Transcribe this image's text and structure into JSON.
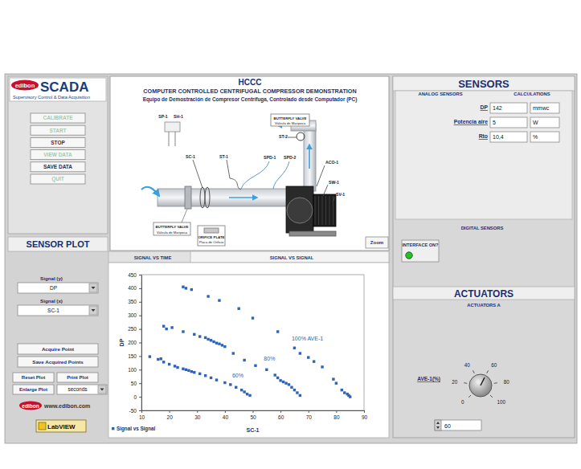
{
  "header": {
    "brand": "edibon",
    "product": "SCADA",
    "subtitle": "Supervisory Control & Data Acquisition"
  },
  "buttons": [
    {
      "label": "CALIBRATE",
      "enabled": false
    },
    {
      "label": "START",
      "enabled": false
    },
    {
      "label": "STOP",
      "enabled": true
    },
    {
      "label": "VIEW DATA",
      "enabled": false
    },
    {
      "label": "SAVE DATA",
      "enabled": true
    },
    {
      "label": "QUIT",
      "enabled": false
    }
  ],
  "diagram": {
    "code": "HCCC",
    "title": "COMPUTER CONTROLLED CENTRIFUGAL COMPRESSOR DEMONSTRATION",
    "subtitle": "Equipo de Demostración de Compresor Centrífuga, Controlado desde Computador (PC)",
    "tags": [
      "SP-1",
      "SH-1",
      "SC-1",
      "ST-1",
      "SPD-1",
      "SPD-2",
      "ST-2",
      "ACO-1",
      "SW-1",
      "SV-1"
    ],
    "valve_outlet": [
      "BUTTERFLY VALVE",
      "Válvula de Mariposa"
    ],
    "valve_inlet": [
      "BUTTERFLY VALVE",
      "Válvula de Mariposa"
    ],
    "orifice": [
      "ORIFICE PLATE",
      "Placa de Orificio"
    ],
    "zoom": "Zoom"
  },
  "sensors": {
    "title": "SENSORS",
    "tabs": [
      "ANALOG SENSORS",
      "CALCULATIONS"
    ],
    "readings": [
      {
        "label": "DP",
        "value": 142,
        "unit": "mmwc"
      },
      {
        "label": "Potencia aire",
        "value": 5,
        "unit": "W"
      },
      {
        "label": "Rto",
        "value": 10.4,
        "value_label": "10,4",
        "unit": "%"
      }
    ],
    "digital_title": "DIGITAL SENSORS",
    "interface": {
      "label": "INTERFACE ON?",
      "on": true
    }
  },
  "actuators": {
    "title": "ACTUATORS",
    "group": "ACTUATORS A",
    "knob": {
      "label": "AVE-1(%)",
      "range": [
        0,
        100
      ],
      "ticks": [
        0,
        20,
        40,
        60,
        80,
        100
      ],
      "value": 60
    }
  },
  "sensor_plot": {
    "title": "SENSOR PLOT",
    "tabs": [
      "SIGNAL VS TIME",
      "SIGNAL VS SIGNAL"
    ],
    "signal_y_label": "Signal (y)",
    "signal_y": "DP",
    "signal_x_label": "Signal (x)",
    "signal_x": "SC-1",
    "buttons": [
      "Acquire Point",
      "Save Acquired Points",
      "Reset Plot",
      "Print Plot",
      "Enlarge Plot"
    ],
    "time_unit": "seconds",
    "website": "www.edibon.com",
    "logo": "edibon",
    "labview": "LabVIEW"
  },
  "chart_data": {
    "type": "scatter",
    "x_label": "SC-1",
    "y_label": "DP",
    "xlim": [
      10,
      90
    ],
    "ylim": [
      -50,
      450
    ],
    "xticks": [
      10,
      20,
      30,
      40,
      50,
      60,
      70,
      80,
      90
    ],
    "yticks": [
      -50,
      0,
      50,
      100,
      150,
      200,
      250,
      300,
      350,
      400,
      450
    ],
    "grid": false,
    "legend": "bottom-left",
    "annotations": [
      {
        "text": "100% AVE-1",
        "x": 64,
        "y": 206
      },
      {
        "text": "80%",
        "x": 54,
        "y": 132
      },
      {
        "text": "60%",
        "x": 42.6,
        "y": 70
      }
    ],
    "series": [
      {
        "name": "Signal vs Signal",
        "color": "#2f63b8",
        "marker": "square",
        "x": [
          25,
          26,
          28,
          34,
          38,
          45,
          50,
          59,
          65,
          67,
          70,
          72,
          75,
          79,
          80,
          82,
          83,
          84,
          84.5,
          85,
          18,
          19,
          21,
          25,
          29,
          31,
          33,
          34,
          35,
          36,
          37,
          38,
          39,
          40,
          43,
          47,
          51,
          55,
          58,
          59,
          60,
          61,
          62,
          63,
          64,
          65,
          66,
          67,
          13,
          16,
          17,
          18,
          20,
          22,
          23,
          25,
          26,
          27,
          28,
          29,
          31,
          33,
          35,
          37,
          40,
          42,
          44,
          46,
          47,
          48,
          49
        ],
        "values": [
          405,
          400,
          395,
          370,
          355,
          325,
          290,
          240,
          180,
          160,
          145,
          130,
          110,
          65,
          50,
          25,
          15,
          10,
          5,
          0,
          260,
          250,
          255,
          240,
          230,
          222,
          218,
          212,
          208,
          203,
          198,
          195,
          190,
          185,
          160,
          135,
          115,
          100,
          80,
          70,
          60,
          55,
          50,
          45,
          35,
          25,
          15,
          5,
          148,
          138,
          140,
          128,
          120,
          113,
          108,
          103,
          100,
          97,
          93,
          90,
          85,
          78,
          70,
          62,
          52,
          45,
          35,
          25,
          18,
          10,
          5
        ]
      }
    ]
  }
}
